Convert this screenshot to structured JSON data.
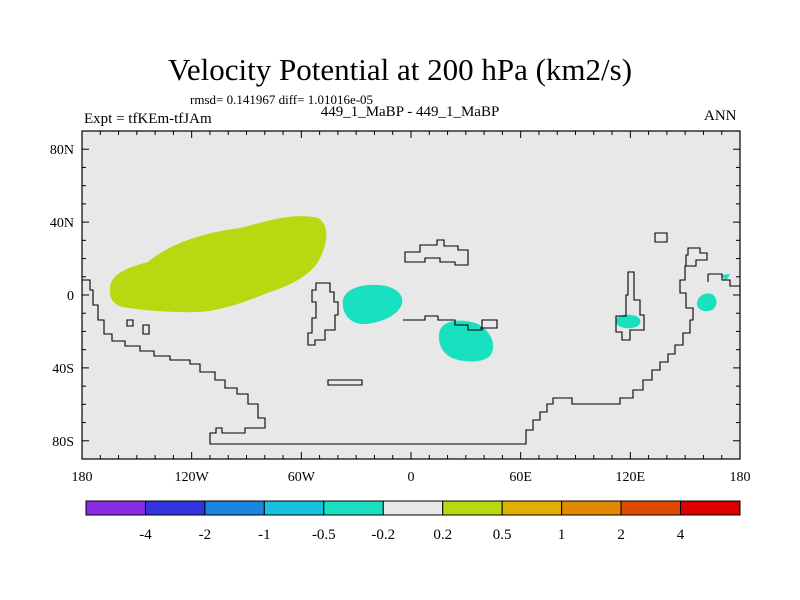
{
  "title": "Velocity Potential at 200 hPa (km2/s)",
  "stats_line": "rmsd= 0.141967  diff= 1.01016e-05",
  "subtitle": "449_1_MaBP - 449_1_MaBP",
  "left_label": "Expt = tfKEm-tfJAm",
  "right_label": "ANN",
  "map": {
    "projection": "cylindrical-equidistant",
    "lon_range": [
      -180,
      180
    ],
    "lat_range": [
      -90,
      90
    ],
    "background_color": "#e8e8e8",
    "coastline_color": "#000000",
    "lat_ticks": [
      {
        "value": 80,
        "label": "80N"
      },
      {
        "value": 40,
        "label": "40N"
      },
      {
        "value": 0,
        "label": "0"
      },
      {
        "value": -40,
        "label": "40S"
      },
      {
        "value": -80,
        "label": "80S"
      }
    ],
    "lon_ticks": [
      {
        "value": -180,
        "label": "180"
      },
      {
        "value": -120,
        "label": "120W"
      },
      {
        "value": -60,
        "label": "60W"
      },
      {
        "value": 0,
        "label": "0"
      },
      {
        "value": 60,
        "label": "60E"
      },
      {
        "value": 120,
        "label": "120E"
      },
      {
        "value": 180,
        "label": "180"
      }
    ]
  },
  "colorbar": {
    "colors": [
      "#8a2be2",
      "#3333dd",
      "#1a86dd",
      "#14c2dd",
      "#18e0c0",
      "#e8e8e8",
      "#b8d911",
      "#e0b000",
      "#e08a00",
      "#e04a00",
      "#dd0000"
    ],
    "labels": [
      "-4",
      "-2",
      "-1",
      "-0.5",
      "-0.2",
      "0.2",
      "0.5",
      "1",
      "2",
      "4"
    ]
  },
  "contour_regions": [
    {
      "name": "positive-anomaly-north-pacific",
      "level": "0.2 to 0.5",
      "color": "#b8d911"
    },
    {
      "name": "negative-anomaly-west-africa",
      "level": "-0.5 to -0.2",
      "color": "#18e0c0"
    },
    {
      "name": "negative-anomaly-south-africa",
      "level": "-0.5 to -0.2",
      "color": "#18e0c0"
    },
    {
      "name": "negative-anomaly-indonesia",
      "level": "-0.5 to -0.2",
      "color": "#18e0c0"
    },
    {
      "name": "negative-anomaly-west-pacific",
      "level": "-0.5 to -0.2",
      "color": "#18e0c0"
    },
    {
      "name": "negative-anomaly-date-line",
      "level": "-0.5 to -0.2",
      "color": "#18e0c0"
    }
  ]
}
